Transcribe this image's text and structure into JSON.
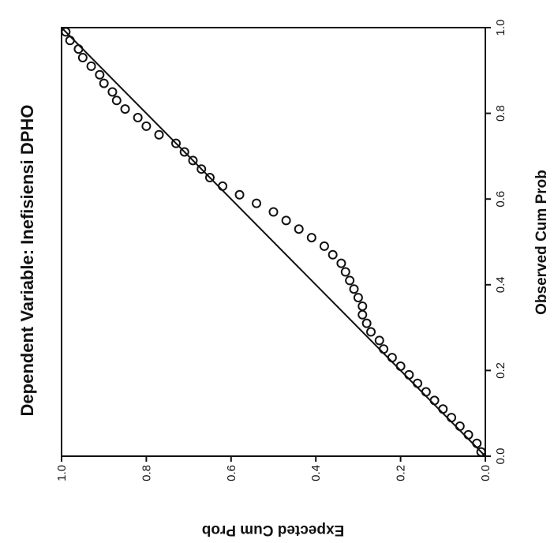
{
  "chart_data": {
    "type": "scatter",
    "title": "Dependent Variable: Inefisiensi DPHO",
    "x_label": "Observed Cum Prob",
    "y_label": "Expected Cum Prob",
    "xlim": [
      0,
      1
    ],
    "ylim": [
      0,
      1
    ],
    "xticks": [
      {
        "value": 0,
        "label": "0.0"
      },
      0.2,
      0.4,
      0.6,
      0.8,
      {
        "value": 1,
        "label": "1.0"
      }
    ],
    "yticks": [
      {
        "value": 0,
        "label": "0.0"
      },
      0.2,
      0.4,
      0.6,
      0.8,
      {
        "value": 1,
        "label": "1.0"
      }
    ],
    "color": "#111111",
    "x": [
      0.01,
      0.03,
      0.05,
      0.07,
      0.09,
      0.11,
      0.13,
      0.15,
      0.17,
      0.19,
      0.21,
      0.23,
      0.25,
      0.27,
      0.29,
      0.31,
      0.33,
      0.35,
      0.37,
      0.39,
      0.41,
      0.43,
      0.45,
      0.47,
      0.49,
      0.51,
      0.53,
      0.55,
      0.57,
      0.59,
      0.61,
      0.63,
      0.65,
      0.67,
      0.69,
      0.71,
      0.73,
      0.75,
      0.77,
      0.79,
      0.81,
      0.83,
      0.85,
      0.87,
      0.89,
      0.91,
      0.93,
      0.95,
      0.97,
      0.99
    ],
    "values": [
      0.01,
      0.02,
      0.04,
      0.06,
      0.08,
      0.1,
      0.12,
      0.14,
      0.16,
      0.18,
      0.2,
      0.22,
      0.24,
      0.25,
      0.27,
      0.28,
      0.29,
      0.29,
      0.3,
      0.31,
      0.32,
      0.33,
      0.34,
      0.36,
      0.38,
      0.41,
      0.44,
      0.47,
      0.5,
      0.54,
      0.58,
      0.62,
      0.65,
      0.67,
      0.69,
      0.71,
      0.73,
      0.77,
      0.8,
      0.82,
      0.85,
      0.87,
      0.88,
      0.9,
      0.91,
      0.93,
      0.95,
      0.96,
      0.98,
      0.99
    ]
  }
}
